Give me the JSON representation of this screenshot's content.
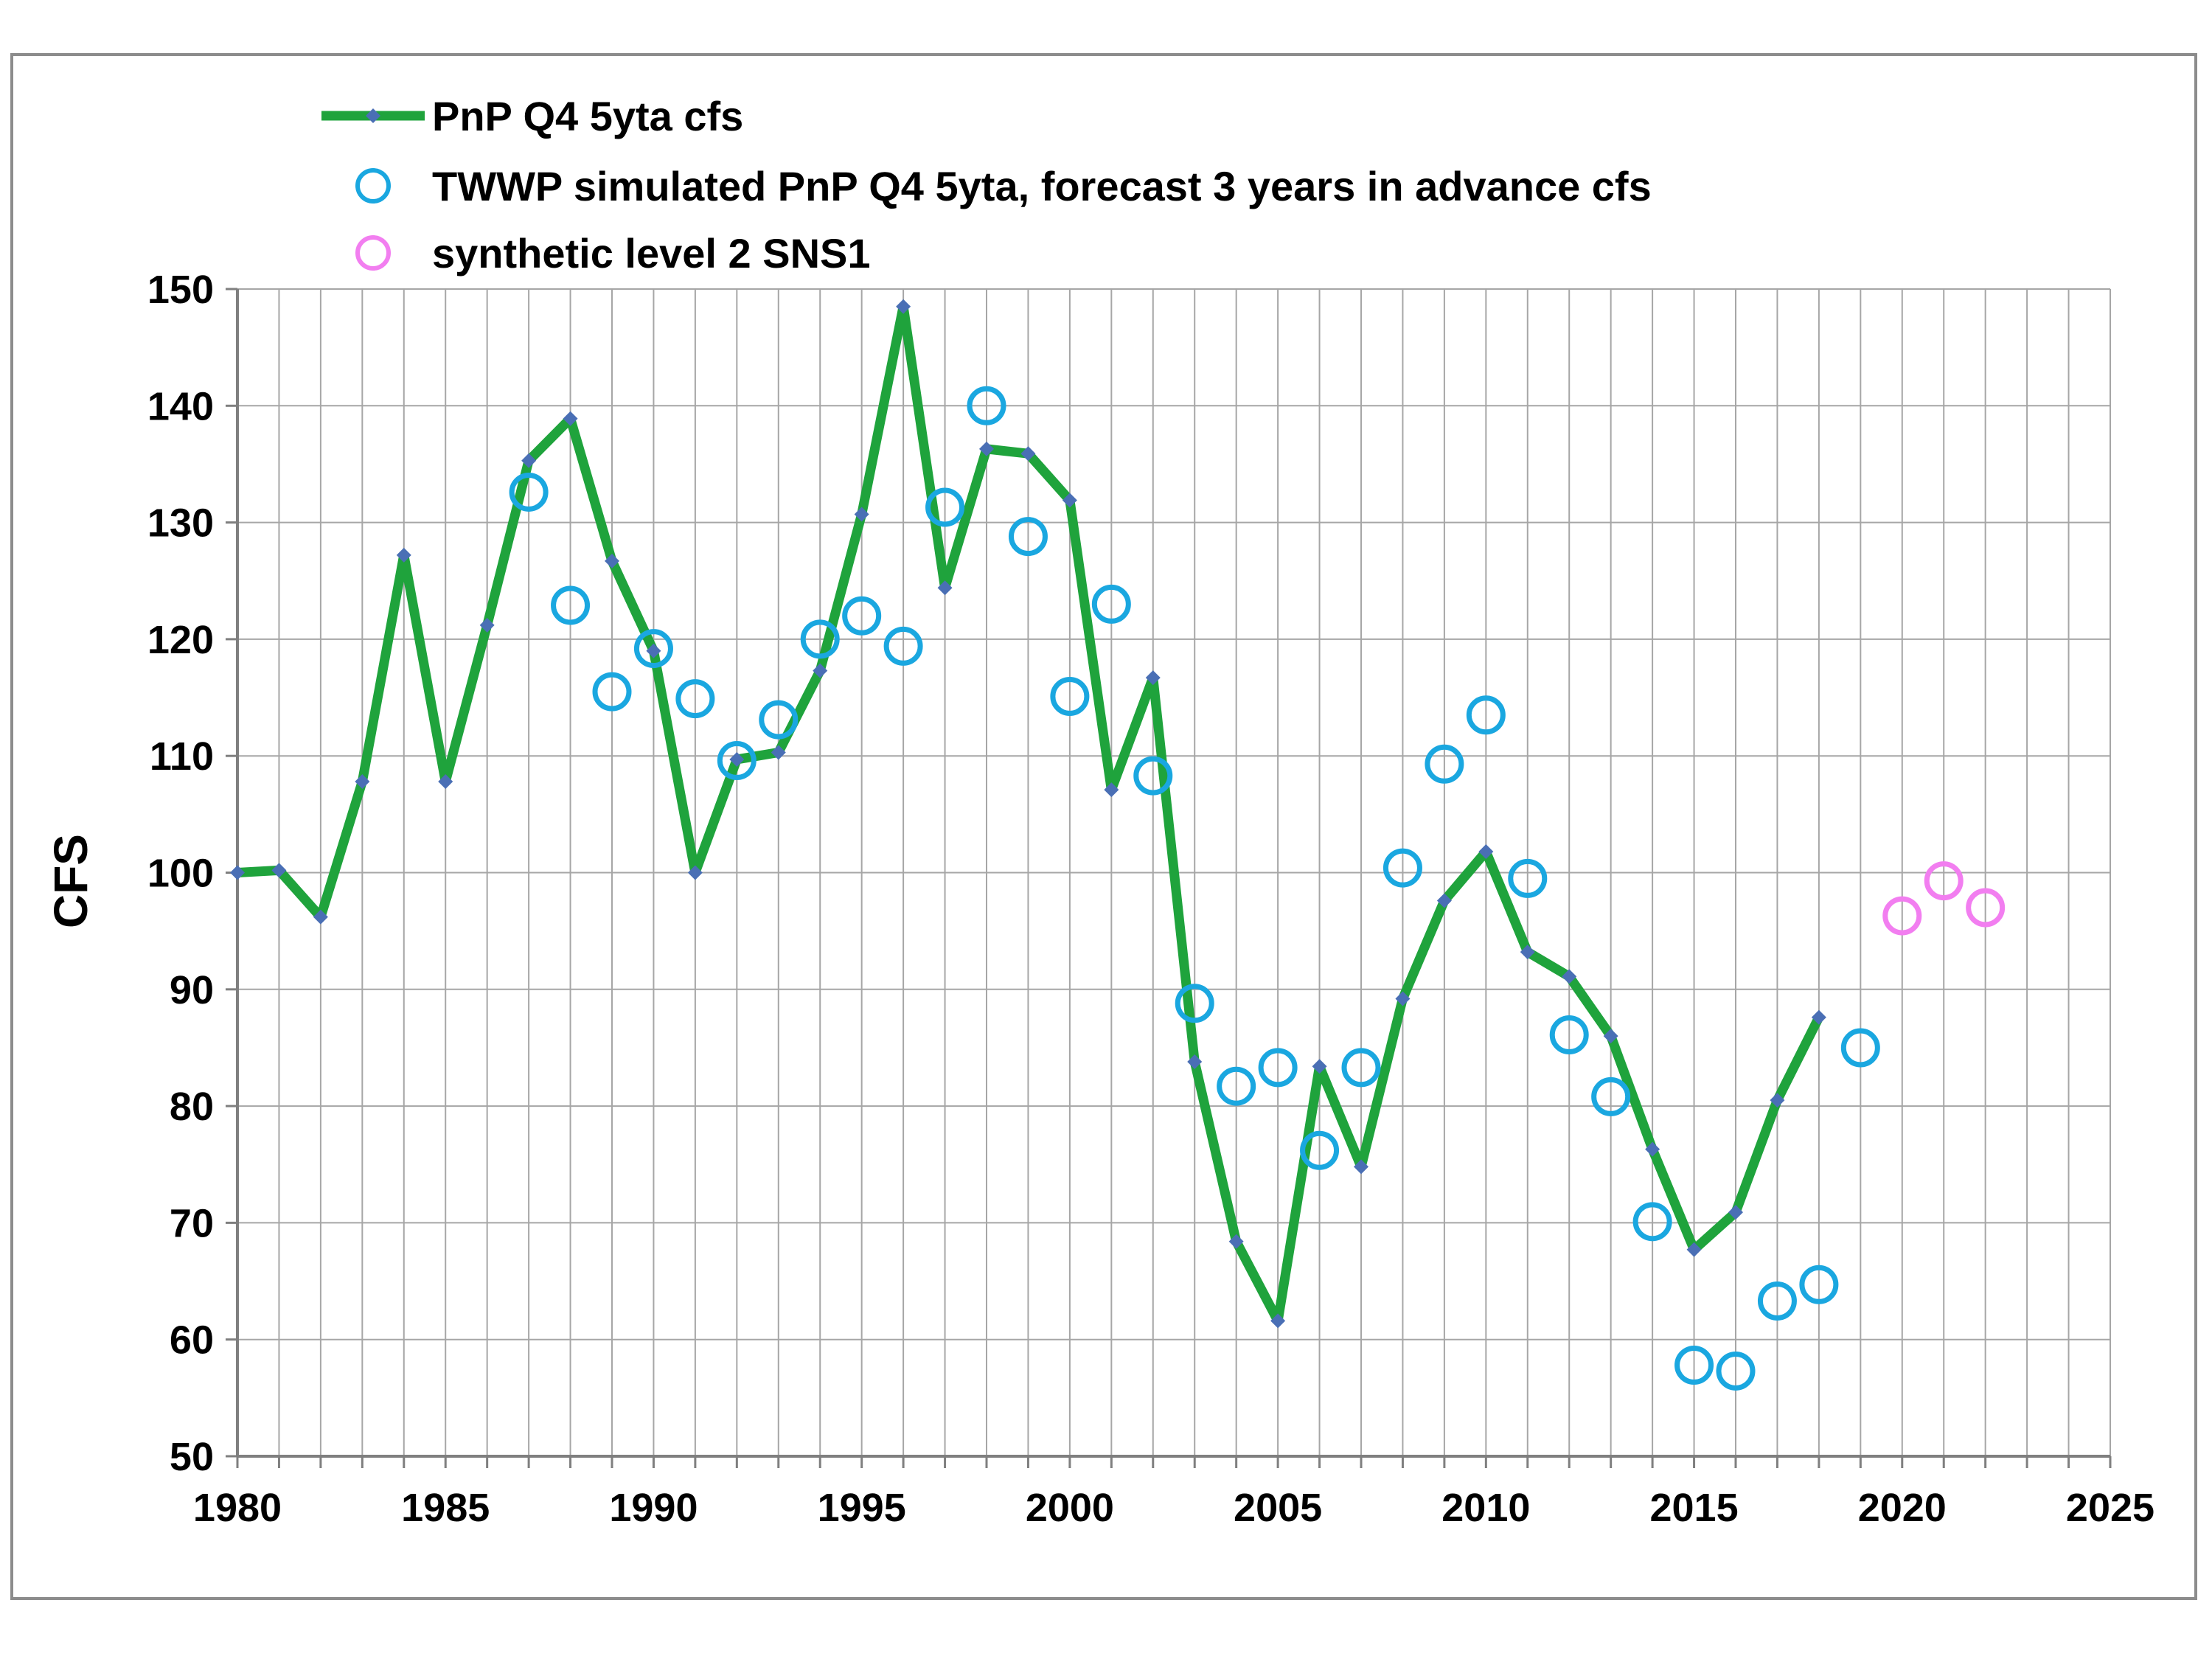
{
  "chart_data": {
    "type": "line",
    "title": "",
    "xlabel": "",
    "ylabel": "CFS",
    "xlim": [
      1980,
      2025
    ],
    "ylim": [
      50,
      150
    ],
    "x_ticks": [
      "1980",
      "1985",
      "1990",
      "1995",
      "2000",
      "2005",
      "2010",
      "2015",
      "2020",
      "2025"
    ],
    "y_ticks": [
      "50",
      "60",
      "70",
      "80",
      "90",
      "100",
      "110",
      "120",
      "130",
      "140",
      "150"
    ],
    "grid": "on",
    "legend_position": "top-left",
    "series": [
      {
        "name": "PnP Q4 5yta cfs",
        "kind": "line",
        "color": "#1fa33c",
        "marker_color": "#4a6fb5",
        "x": [
          1980,
          1981,
          1982,
          1983,
          1984,
          1985,
          1986,
          1987,
          1988,
          1989,
          1990,
          1991,
          1992,
          1993,
          1994,
          1995,
          1996,
          1997,
          1998,
          1999,
          2000,
          2001,
          2002,
          2003,
          2004,
          2005,
          2006,
          2007,
          2008,
          2009,
          2010,
          2011,
          2012,
          2013,
          2014,
          2015,
          2016,
          2017,
          2018
        ],
        "y": [
          100,
          100.2,
          96.2,
          107.8,
          127.2,
          107.8,
          121.2,
          135.3,
          138.9,
          126.7,
          119,
          100,
          109.7,
          110.3,
          117.3,
          130.7,
          148.5,
          124.4,
          136.3,
          135.9,
          131.9,
          107.1,
          116.7,
          83.8,
          68.4,
          61.6,
          83.4,
          74.8,
          89.2,
          97.6,
          101.8,
          93.2,
          91.1,
          86,
          76.3,
          67.7,
          70.9,
          80.5,
          87.6
        ]
      },
      {
        "name": "TWWP simulated PnP Q4 5yta, forecast 3 years in advance cfs",
        "kind": "scatter",
        "color": "#1aa7e0",
        "x": [
          1987,
          1988,
          1989,
          1990,
          1991,
          1992,
          1993,
          1994,
          1995,
          1996,
          1997,
          1998,
          1999,
          2000,
          2001,
          2002,
          2003,
          2004,
          2005,
          2006,
          2007,
          2008,
          2009,
          2010,
          2011,
          2012,
          2013,
          2014,
          2015,
          2016,
          2017,
          2018,
          2019
        ],
        "y": [
          132.6,
          122.9,
          115.5,
          119.2,
          114.9,
          109.6,
          113.1,
          120,
          122,
          119.4,
          131.3,
          140,
          128.8,
          115.1,
          123,
          108.3,
          88.8,
          81.7,
          83.3,
          76.2,
          83.3,
          100.4,
          109.3,
          113.5,
          99.5,
          86.1,
          80.8,
          70.1,
          57.8,
          57.3,
          63.3,
          64.7,
          85
        ]
      },
      {
        "name": "synthetic level 2 SNS1",
        "kind": "scatter",
        "color": "#f27ef0",
        "x": [
          2020,
          2021,
          2022
        ],
        "y": [
          96.3,
          99.3,
          97
        ]
      }
    ]
  }
}
